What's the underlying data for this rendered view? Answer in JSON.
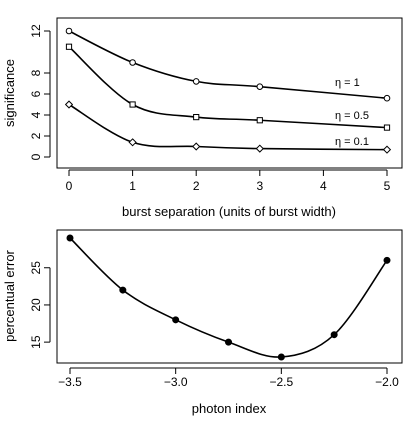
{
  "chart_data": [
    {
      "type": "line",
      "title": "",
      "xlabel": "burst separation (units of burst width)",
      "ylabel": "significance",
      "xlim": [
        0,
        5
      ],
      "ylim": [
        0,
        12
      ],
      "xticks": [
        "0",
        "1",
        "2",
        "3",
        "4",
        "5"
      ],
      "yticks": [
        "0",
        "2",
        "4",
        "6",
        "8",
        "12"
      ],
      "grid": false,
      "legend": "none",
      "x": [
        0,
        1,
        2,
        3,
        5
      ],
      "series": [
        {
          "name": "η = 1",
          "marker": "circle",
          "values": [
            12.0,
            9.0,
            7.2,
            6.7,
            5.6
          ]
        },
        {
          "name": "η = 0.5",
          "marker": "square",
          "values": [
            10.5,
            5.0,
            3.8,
            3.5,
            2.8
          ]
        },
        {
          "name": "η = 0.1",
          "marker": "diamond",
          "values": [
            5.0,
            1.4,
            1.0,
            0.8,
            0.7
          ]
        }
      ]
    },
    {
      "type": "line",
      "title": "",
      "xlabel": "photon index",
      "ylabel": "percentual error",
      "xlim": [
        -3.5,
        -2.0
      ],
      "ylim": [
        13,
        29
      ],
      "xticks": [
        "−3.5",
        "−3.0",
        "−2.5",
        "−2.0"
      ],
      "yticks": [
        "15",
        "20",
        "25"
      ],
      "grid": false,
      "legend": "none",
      "x": [
        -3.5,
        -3.25,
        -3.0,
        -2.75,
        -2.5,
        -2.25,
        -2.0
      ],
      "series": [
        {
          "marker": "filled-circle",
          "values": [
            29.0,
            22.0,
            18.0,
            15.0,
            13.0,
            16.0,
            26.0
          ]
        }
      ]
    }
  ]
}
